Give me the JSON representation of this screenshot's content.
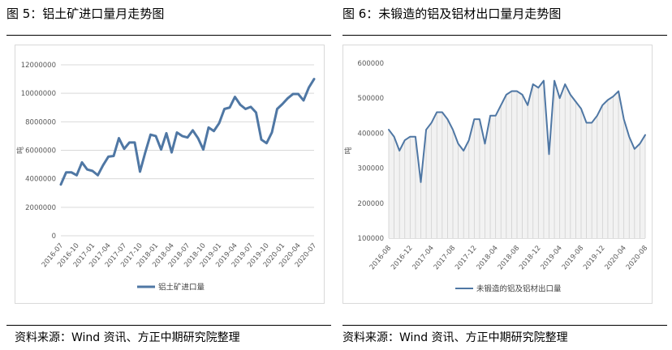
{
  "left": {
    "title": "图 5：铝土矿进口量月走势图",
    "source": "资料来源：Wind 资讯、方正中期研究院整理",
    "chart_data": {
      "type": "line",
      "ylabel": "吨",
      "ylim": [
        0,
        12000000
      ],
      "yticks": [
        0,
        2000000,
        4000000,
        6000000,
        8000000,
        10000000,
        12000000
      ],
      "ytick_labels": [
        "0",
        "2000000",
        "4000000",
        "6000000",
        "8000000",
        "10000000",
        "12000000"
      ],
      "xtick_labels": [
        "2016-07",
        "2016-10",
        "2017-01",
        "2017-04",
        "2017-07",
        "2017-10",
        "2018-01",
        "2018-04",
        "2018-07",
        "2018-10",
        "2019-01",
        "2019-04",
        "2019-07",
        "2019-10",
        "2020-01",
        "2020-04",
        "2020-07"
      ],
      "legend_position": "bottom",
      "grid": true,
      "line_color": "#4f77a4",
      "series": [
        {
          "name": "铝土矿进口量",
          "x": [
            "2016-07",
            "2016-08",
            "2016-09",
            "2016-10",
            "2016-11",
            "2016-12",
            "2017-01",
            "2017-02",
            "2017-03",
            "2017-04",
            "2017-05",
            "2017-06",
            "2017-07",
            "2017-08",
            "2017-09",
            "2017-10",
            "2017-11",
            "2017-12",
            "2018-01",
            "2018-02",
            "2018-03",
            "2018-04",
            "2018-05",
            "2018-06",
            "2018-07",
            "2018-08",
            "2018-09",
            "2018-10",
            "2018-11",
            "2018-12",
            "2019-01",
            "2019-02",
            "2019-03",
            "2019-04",
            "2019-05",
            "2019-06",
            "2019-07",
            "2019-08",
            "2019-09",
            "2019-10",
            "2019-11",
            "2019-12",
            "2020-01",
            "2020-02",
            "2020-03",
            "2020-04",
            "2020-05",
            "2020-06",
            "2020-07"
          ],
          "values": [
            3600000,
            4450000,
            4450000,
            4250000,
            5150000,
            4650000,
            4550000,
            4250000,
            4950000,
            5550000,
            5600000,
            6850000,
            6100000,
            6550000,
            6550000,
            4500000,
            5850000,
            7100000,
            7000000,
            6050000,
            7200000,
            5850000,
            7250000,
            7000000,
            6900000,
            7400000,
            6850000,
            6050000,
            7600000,
            7350000,
            7900000,
            8900000,
            9000000,
            9750000,
            9200000,
            8900000,
            9050000,
            8650000,
            6750000,
            6500000,
            7250000,
            8900000,
            9250000,
            9650000,
            9950000,
            9950000,
            9500000,
            10400000,
            11000000
          ]
        }
      ]
    }
  },
  "right": {
    "title": "图 6：未锻造的铝及铝材出口量月走势图",
    "source": "资料来源：Wind 资讯、方正中期研究院整理",
    "chart_data": {
      "type": "area",
      "ylabel": "吨",
      "ylim": [
        100000,
        600000
      ],
      "yticks": [
        100000,
        200000,
        300000,
        400000,
        500000,
        600000
      ],
      "ytick_labels": [
        "100000",
        "200000",
        "300000",
        "400000",
        "500000",
        "600000"
      ],
      "xtick_labels": [
        "2016-08",
        "2016-12",
        "2017-04",
        "2017-08",
        "2017-12",
        "2018-04",
        "2018-08",
        "2018-12",
        "2019-04",
        "2019-08",
        "2019-12",
        "2020-04",
        "2020-08"
      ],
      "legend_position": "bottom",
      "grid": false,
      "line_color": "#4f77a4",
      "series": [
        {
          "name": "未锻造的铝及铝材出口量",
          "x": [
            "2016-08",
            "2016-09",
            "2016-10",
            "2016-11",
            "2016-12",
            "2017-01",
            "2017-02",
            "2017-03",
            "2017-04",
            "2017-05",
            "2017-06",
            "2017-07",
            "2017-08",
            "2017-09",
            "2017-10",
            "2017-11",
            "2017-12",
            "2018-01",
            "2018-02",
            "2018-03",
            "2018-04",
            "2018-05",
            "2018-06",
            "2018-07",
            "2018-08",
            "2018-09",
            "2018-10",
            "2018-11",
            "2018-12",
            "2019-01",
            "2019-02",
            "2019-03",
            "2019-04",
            "2019-05",
            "2019-06",
            "2019-07",
            "2019-08",
            "2019-09",
            "2019-10",
            "2019-11",
            "2019-12",
            "2020-01",
            "2020-02",
            "2020-03",
            "2020-04",
            "2020-05",
            "2020-06",
            "2020-07",
            "2020-08"
          ],
          "values": [
            410000,
            390000,
            350000,
            380000,
            390000,
            390000,
            260000,
            410000,
            430000,
            460000,
            460000,
            440000,
            410000,
            370000,
            350000,
            380000,
            440000,
            440000,
            370000,
            450000,
            450000,
            480000,
            510000,
            520000,
            520000,
            510000,
            480000,
            540000,
            530000,
            550000,
            340000,
            550000,
            500000,
            540000,
            510000,
            490000,
            470000,
            430000,
            430000,
            450000,
            480000,
            495000,
            505000,
            520000,
            440000,
            390000,
            355000,
            370000,
            395000
          ]
        }
      ]
    }
  }
}
